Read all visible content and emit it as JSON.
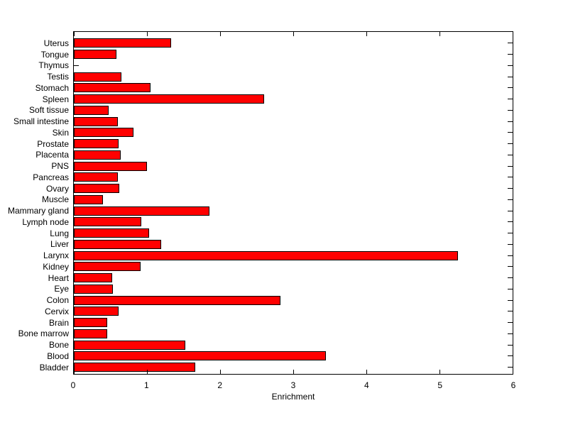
{
  "chart_data": {
    "type": "bar",
    "orientation": "horizontal",
    "title": "",
    "xlabel": "Enrichment",
    "ylabel": "",
    "xlim": [
      0,
      6
    ],
    "x_ticks": [
      0,
      1,
      2,
      3,
      4,
      5,
      6
    ],
    "grid": false,
    "legend": null,
    "bar_color": "#FF0000",
    "bar_edge_color": "#000000",
    "axis_color": "#000000",
    "background_color": "#FFFFFF",
    "categories_top_to_bottom": [
      "Uterus",
      "Tongue",
      "Thymus",
      "Testis",
      "Stomach",
      "Spleen",
      "Soft tissue",
      "Small intestine",
      "Skin",
      "Prostate",
      "Placenta",
      "PNS",
      "Pancreas",
      "Ovary",
      "Muscle",
      "Mammary gland",
      "Lymph node",
      "Lung",
      "Liver",
      "Larynx",
      "Kidney",
      "Heart",
      "Eye",
      "Colon",
      "Cervix",
      "Brain",
      "Bone marrow",
      "Bone",
      "Blood",
      "Bladder"
    ],
    "values": [
      1.33,
      0.58,
      0,
      0.65,
      1.05,
      2.6,
      0.48,
      0.6,
      0.82,
      0.61,
      0.64,
      1.0,
      0.6,
      0.62,
      0.4,
      1.85,
      0.92,
      1.03,
      1.19,
      5.25,
      0.91,
      0.52,
      0.53,
      2.83,
      0.61,
      0.46,
      0.46,
      1.52,
      3.45,
      1.66
    ]
  }
}
